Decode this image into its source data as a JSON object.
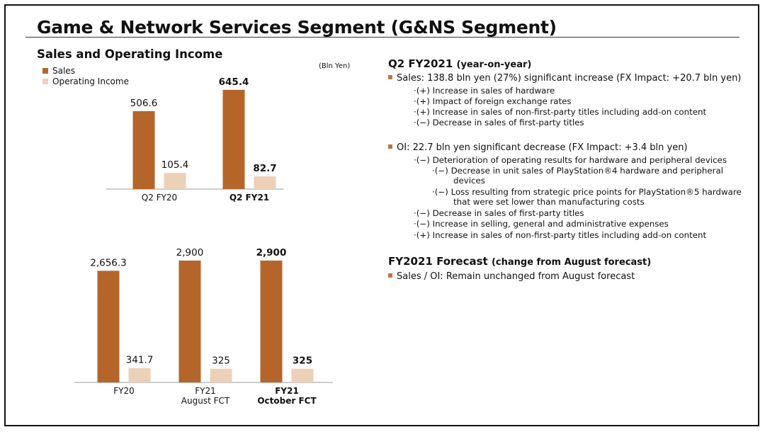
{
  "slide": {
    "title": "Game & Network Services Segment (G&NS Segment)"
  },
  "colors": {
    "sales": "#b5652a",
    "operating_income": "#ecd0b8",
    "bullet": "#c07540"
  },
  "left": {
    "chart_title": "Sales and Operating Income",
    "unit": "(Bln Yen)",
    "legend": [
      "Sales",
      "Operating Income"
    ]
  },
  "chart_data": [
    {
      "type": "bar",
      "categories": [
        "Q2 FY20",
        "Q2 FY21"
      ],
      "category_bold": [
        false,
        true
      ],
      "series": [
        {
          "name": "Sales",
          "values": [
            506.6,
            645.4
          ],
          "labels": [
            "506.6",
            "645.4"
          ]
        },
        {
          "name": "Operating Income",
          "values": [
            105.4,
            82.7
          ],
          "labels": [
            "105.4",
            "82.7"
          ]
        }
      ],
      "ylim": [
        0,
        700
      ]
    },
    {
      "type": "bar",
      "categories": [
        [
          "FY20"
        ],
        [
          "FY21",
          "August FCT"
        ],
        [
          "FY21",
          "October FCT"
        ]
      ],
      "category_bold": [
        false,
        false,
        true
      ],
      "series": [
        {
          "name": "Sales",
          "values": [
            2656.3,
            2900,
            2900
          ],
          "labels": [
            "2,656.3",
            "2,900",
            "2,900"
          ]
        },
        {
          "name": "Operating Income",
          "values": [
            341.7,
            325,
            325
          ],
          "labels": [
            "341.7",
            "325",
            "325"
          ]
        }
      ],
      "ylim": [
        0,
        3000
      ]
    }
  ],
  "right": {
    "q2_heading": "Q2 FY2021",
    "q2_sub": "(year-on-year)",
    "sales_bullet": "Sales: 138.8 bln yen (27%) significant increase (FX Impact: +20.7 bln yen)",
    "sales_items": [
      "·(+) Increase in sales of hardware",
      "·(+) Impact of foreign exchange rates",
      "·(+) Increase in sales of non-first-party titles including add-on content",
      "·(−) Decrease in sales of first-party titles"
    ],
    "oi_bullet": "OI: 22.7 bln yen significant decrease (FX Impact: +3.4 bln yen)",
    "oi_item1": "·(−) Deterioration of operating results for hardware and peripheral devices",
    "oi_sub1a": "·(−) Decrease in unit sales of PlayStation®4 hardware and peripheral",
    "oi_sub1b": "devices",
    "oi_sub2a": "·(−) Loss resulting from strategic price points for PlayStation®5  hardware",
    "oi_sub2b": "that were set lower than manufacturing costs",
    "oi_items": [
      "·(−) Decrease in sales of first-party titles",
      "·(−) Increase in selling, general and administrative expenses",
      "·(+) Increase in sales of non-first-party titles including add-on content"
    ],
    "fy_heading": "FY2021 Forecast",
    "fy_sub": "(change from August forecast)",
    "fy_bullet": "Sales / OI: Remain unchanged from August forecast"
  }
}
